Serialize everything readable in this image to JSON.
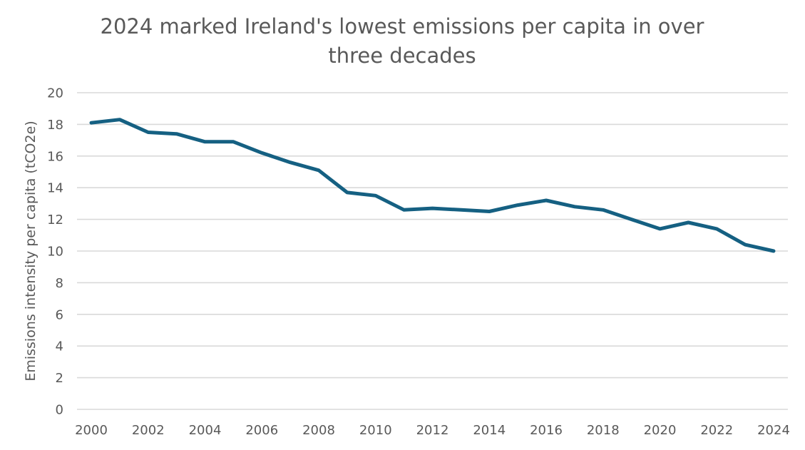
{
  "chart_data": {
    "type": "line",
    "title": "2024 marked Ireland's lowest emissions per capita in over three decades",
    "title_lines": [
      "2024 marked Ireland's lowest emissions per capita in over",
      "three decades"
    ],
    "xlabel": "",
    "ylabel": "Emissions intensity per capita (tCO2e)",
    "ylim": [
      0,
      20
    ],
    "yticks": [
      0,
      2,
      4,
      6,
      8,
      10,
      12,
      14,
      16,
      18,
      20
    ],
    "xticks": [
      "2000",
      "2002",
      "2004",
      "2006",
      "2008",
      "2010",
      "2012",
      "2014",
      "2016",
      "2018",
      "2020",
      "2022",
      "2024"
    ],
    "grid": true,
    "legend": "none",
    "x": [
      2000,
      2001,
      2002,
      2003,
      2004,
      2005,
      2006,
      2007,
      2008,
      2009,
      2010,
      2011,
      2012,
      2013,
      2014,
      2015,
      2016,
      2017,
      2018,
      2019,
      2020,
      2021,
      2022,
      2023,
      2024
    ],
    "series": [
      {
        "name": "Emissions intensity per capita",
        "color": "#156082",
        "values": [
          18.1,
          18.3,
          17.5,
          17.4,
          16.9,
          16.9,
          16.2,
          15.6,
          15.1,
          13.7,
          13.5,
          12.6,
          12.7,
          12.6,
          12.5,
          12.9,
          13.2,
          12.8,
          12.6,
          12.0,
          11.4,
          11.8,
          11.4,
          10.4,
          10.0
        ]
      }
    ]
  }
}
